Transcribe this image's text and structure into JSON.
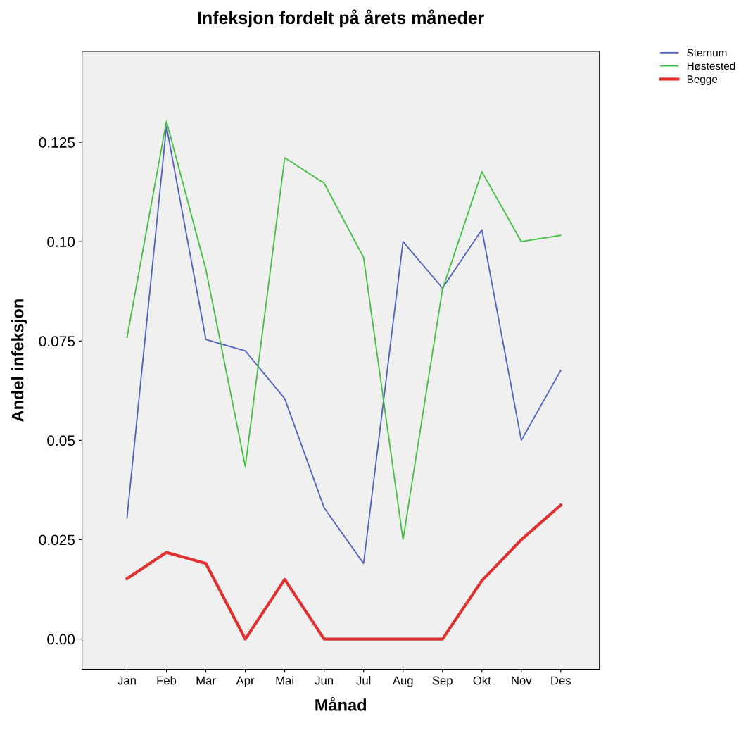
{
  "chart_data": {
    "type": "line",
    "title": "Infeksjon fordelt på årets måneder",
    "xlabel": "Månad",
    "ylabel": "Andel infeksjon",
    "categories": [
      "Jan",
      "Feb",
      "Mar",
      "Apr",
      "Mai",
      "Jun",
      "Jul",
      "Aug",
      "Sep",
      "Okt",
      "Nov",
      "Des"
    ],
    "series": [
      {
        "name": "Sternum",
        "color": "#5060c0",
        "values": [
          0.0305,
          0.129,
          0.0754,
          0.0725,
          0.0605,
          0.033,
          0.019,
          0.1,
          0.0883,
          0.103,
          0.05,
          0.0676
        ]
      },
      {
        "name": "Høstested",
        "color": "#40c040",
        "values": [
          0.0759,
          0.1303,
          0.093,
          0.0434,
          0.1211,
          0.1147,
          0.096,
          0.025,
          0.088,
          0.1176,
          0.1,
          0.1016
        ]
      },
      {
        "name": "Begge",
        "color": "#e03030",
        "values": [
          0.0152,
          0.0218,
          0.019,
          0.0,
          0.015,
          0.0,
          0.0,
          0.0,
          0.0,
          0.0147,
          0.025,
          0.0337
        ]
      }
    ],
    "ylim": [
      -0.0076,
      0.1479
    ],
    "yticks": [
      {
        "value": 0,
        "label": "0.00"
      },
      0.025,
      {
        "value": 0.05,
        "label": "0.05"
      },
      0.075,
      {
        "value": 0.1,
        "label": "0.10"
      },
      0.125
    ],
    "grid": false,
    "legend": "top right",
    "marker": "none",
    "line_style": "solid"
  }
}
